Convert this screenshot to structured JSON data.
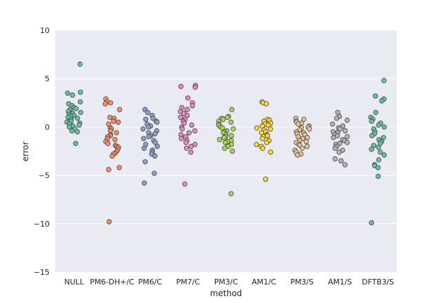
{
  "chart_data": {
    "type": "scatter",
    "subtype": "strip",
    "title": "",
    "xlabel": "method",
    "ylabel": "error",
    "ylim": [
      -15,
      10
    ],
    "yticks": [
      10,
      5,
      0,
      -5,
      -10,
      -15
    ],
    "ytick_labels": [
      "10",
      "5",
      "0",
      "−5",
      "−10",
      "−15"
    ],
    "grid": true,
    "categories": [
      "NULL",
      "PM6-DH+/C",
      "PM6/C",
      "PM7/C",
      "PM3/C",
      "AM1/C",
      "PM3/S",
      "AM1/S",
      "DFTB3/S"
    ],
    "series": [
      {
        "name": "NULL",
        "color": "#66c2a5",
        "values": [
          6.5,
          3.6,
          3.5,
          3.3,
          2.6,
          2.4,
          2.2,
          2.0,
          1.9,
          1.8,
          1.6,
          1.5,
          1.4,
          1.3,
          1.2,
          1.1,
          1.0,
          0.9,
          0.8,
          0.6,
          0.5,
          0.4,
          0.3,
          0.2,
          0.1,
          0.0,
          -0.2,
          -0.4,
          -0.5,
          -1.7
        ]
      },
      {
        "name": "PM6-DH+/C",
        "color": "#fc8d62",
        "values": [
          2.9,
          2.6,
          2.5,
          2.4,
          1.8,
          1.0,
          0.9,
          0.6,
          0.5,
          0.3,
          -0.1,
          -0.2,
          -0.4,
          -0.6,
          -0.8,
          -0.9,
          -1.0,
          -1.2,
          -1.3,
          -1.5,
          -1.7,
          -1.9,
          -2.0,
          -2.1,
          -2.3,
          -2.5,
          -2.7,
          -2.8,
          -3.0,
          -4.2,
          -4.4,
          -9.8
        ]
      },
      {
        "name": "PM6/C",
        "color": "#8da0cb",
        "values": [
          1.8,
          1.5,
          1.2,
          0.9,
          0.8,
          0.6,
          0.5,
          0.3,
          0.1,
          0.0,
          -0.2,
          -0.4,
          -0.6,
          -0.7,
          -0.9,
          -1.0,
          -1.2,
          -1.4,
          -1.6,
          -1.8,
          -2.0,
          -2.2,
          -2.4,
          -2.6,
          -2.8,
          -3.0,
          -3.6,
          -4.8,
          -5.8
        ]
      },
      {
        "name": "PM7/C",
        "color": "#e78ac3",
        "values": [
          4.3,
          4.2,
          4.1,
          3.0,
          2.5,
          2.2,
          2.0,
          1.8,
          1.6,
          1.4,
          1.2,
          1.0,
          0.8,
          0.6,
          0.4,
          0.2,
          0.0,
          -0.2,
          -0.4,
          -0.6,
          -0.8,
          -1.0,
          -1.2,
          -1.4,
          -1.6,
          -1.8,
          -2.0,
          -2.2,
          -2.6,
          -5.9
        ]
      },
      {
        "name": "PM3/C",
        "color": "#a6d854",
        "values": [
          1.8,
          1.1,
          1.0,
          0.9,
          0.8,
          0.6,
          0.5,
          0.3,
          0.2,
          0.0,
          -0.1,
          -0.2,
          -0.4,
          -0.5,
          -0.6,
          -0.8,
          -0.9,
          -1.0,
          -1.1,
          -1.3,
          -1.4,
          -1.5,
          -1.6,
          -1.8,
          -2.0,
          -2.2,
          -2.5,
          -6.9
        ]
      },
      {
        "name": "AM1/C",
        "color": "#ffd92f",
        "values": [
          2.6,
          2.5,
          2.4,
          0.8,
          0.7,
          0.6,
          0.4,
          0.3,
          0.2,
          0.1,
          -0.1,
          -0.2,
          -0.3,
          -0.5,
          -0.6,
          -0.8,
          -0.9,
          -1.0,
          -1.2,
          -1.4,
          -1.6,
          -1.8,
          -2.0,
          -2.2,
          -2.6,
          -5.4
        ]
      },
      {
        "name": "PM3/S",
        "color": "#e5c494",
        "values": [
          0.9,
          0.8,
          0.6,
          0.5,
          0.4,
          0.3,
          0.1,
          0.0,
          -0.1,
          -0.2,
          -0.3,
          -0.5,
          -0.6,
          -0.7,
          -0.8,
          -1.0,
          -1.1,
          -1.2,
          -1.4,
          -1.5,
          -1.6,
          -1.8,
          -1.9,
          -2.0,
          -2.2,
          -2.4,
          -2.6,
          -2.8,
          -2.9
        ]
      },
      {
        "name": "AM1/S",
        "color": "#b3b3b3",
        "values": [
          1.5,
          1.1,
          0.9,
          0.7,
          0.3,
          0.1,
          -0.1,
          -0.2,
          -0.4,
          -0.5,
          -0.6,
          -0.8,
          -0.9,
          -1.0,
          -1.1,
          -1.3,
          -1.4,
          -1.6,
          -1.7,
          -1.8,
          -2.0,
          -2.2,
          -2.4,
          -2.6,
          -3.3,
          -3.5,
          -3.9
        ]
      },
      {
        "name": "DFTB3/S",
        "color": "#66c2a5",
        "values": [
          4.8,
          3.2,
          2.9,
          2.7,
          1.5,
          1.0,
          0.8,
          0.6,
          0.4,
          0.2,
          0.0,
          -0.2,
          -0.5,
          -0.7,
          -0.9,
          -1.1,
          -1.3,
          -1.5,
          -1.7,
          -1.9,
          -2.1,
          -2.3,
          -2.6,
          -2.9,
          -3.4,
          -3.9,
          -4.0,
          -4.2,
          -5.1,
          -9.9
        ]
      }
    ]
  }
}
